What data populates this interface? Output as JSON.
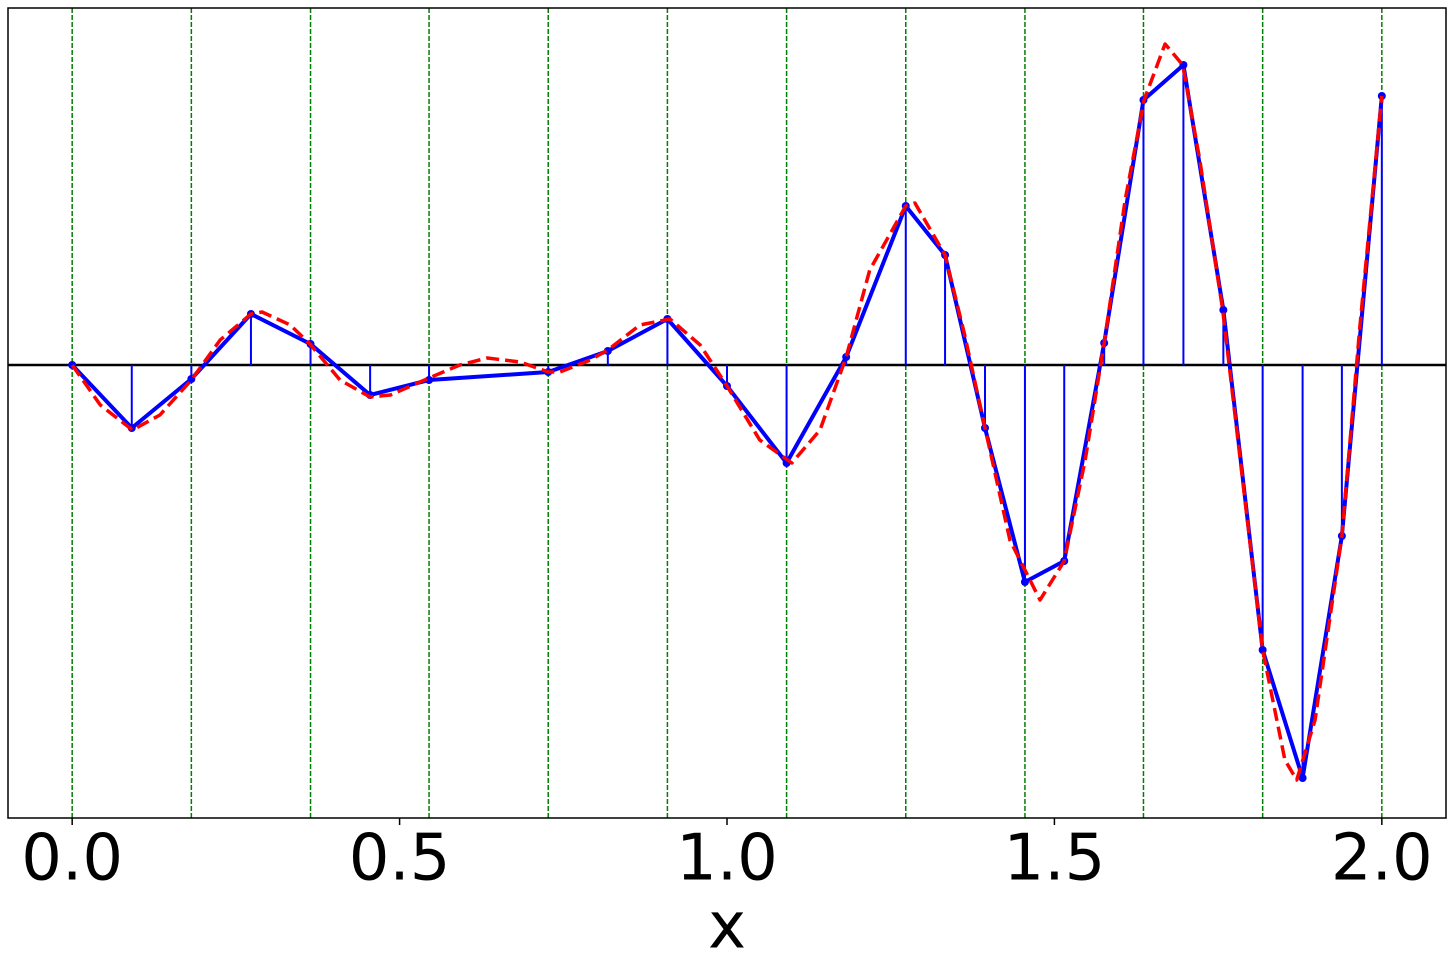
{
  "chart_data": {
    "type": "stem",
    "xlabel": "x",
    "xlim": [
      -0.098,
      2.098
    ],
    "ylim": [
      -4.53,
      3.57
    ],
    "xticks": [
      {
        "value": 0,
        "label": "0.0"
      },
      {
        "value": 0.5,
        "label": "0.5"
      },
      {
        "value": 1,
        "label": "1.0"
      },
      {
        "value": 1.5,
        "label": "1.5"
      },
      {
        "value": 2,
        "label": "2.0"
      }
    ],
    "hline": 0,
    "hline_color": "#000000",
    "vlines": {
      "x": [
        0,
        0.182,
        0.364,
        0.545,
        0.727,
        0.909,
        1.091,
        1.273,
        1.455,
        1.636,
        1.818,
        2.0
      ],
      "color": "#008000"
    },
    "series": [
      {
        "color": "#0000ff",
        "style": "stem",
        "x": [
          0,
          0.091,
          0.182,
          0.273,
          0.364,
          0.455,
          0.545,
          0.727,
          0.818,
          0.909,
          1.0,
          1.091,
          1.182,
          1.273,
          1.333,
          1.394,
          1.455,
          1.515,
          1.576,
          1.636,
          1.697,
          1.758,
          1.818,
          1.879,
          1.939,
          2.0
        ],
        "values": [
          0,
          -0.63,
          -0.14,
          0.51,
          0.21,
          -0.3,
          -0.15,
          -0.07,
          0.14,
          0.46,
          -0.21,
          -0.98,
          0.08,
          1.59,
          1.1,
          -0.63,
          -2.17,
          -1.96,
          0.22,
          2.65,
          3.0,
          0.55,
          -2.85,
          -4.13,
          -1.71,
          2.69
        ]
      },
      {
        "color": "#ff0000",
        "style": "dashed",
        "x": [
          0,
          0.043,
          0.092,
          0.134,
          0.182,
          0.226,
          0.273,
          0.29,
          0.333,
          0.363,
          0.409,
          0.455,
          0.486,
          0.545,
          0.592,
          0.634,
          0.684,
          0.727,
          0.745,
          0.791,
          0.818,
          0.867,
          0.913,
          0.959,
          1.0,
          1.05,
          1.099,
          1.142,
          1.182,
          1.218,
          1.273,
          1.287,
          1.333,
          1.363,
          1.394,
          1.432,
          1.478,
          1.515,
          1.547,
          1.576,
          1.608,
          1.637,
          1.669,
          1.696,
          1.722,
          1.757,
          1.791,
          1.818,
          1.852,
          1.87,
          1.898,
          1.939,
          1.966,
          2.0
        ],
        "values": [
          0,
          -0.4,
          -0.65,
          -0.5,
          -0.15,
          0.25,
          0.51,
          0.53,
          0.4,
          0.21,
          -0.15,
          -0.32,
          -0.3,
          -0.13,
          0.0,
          0.07,
          0.03,
          -0.07,
          -0.07,
          0.05,
          0.15,
          0.4,
          0.46,
          0.2,
          -0.21,
          -0.75,
          -0.98,
          -0.65,
          0.08,
          0.95,
          1.59,
          1.62,
          1.1,
          0.3,
          -0.63,
          -1.75,
          -2.35,
          -1.96,
          -0.95,
          0.22,
          1.65,
          2.65,
          3.21,
          3.0,
          2.05,
          0.55,
          -1.35,
          -2.85,
          -3.95,
          -4.15,
          -3.55,
          -1.71,
          0.35,
          2.69
        ]
      }
    ]
  }
}
